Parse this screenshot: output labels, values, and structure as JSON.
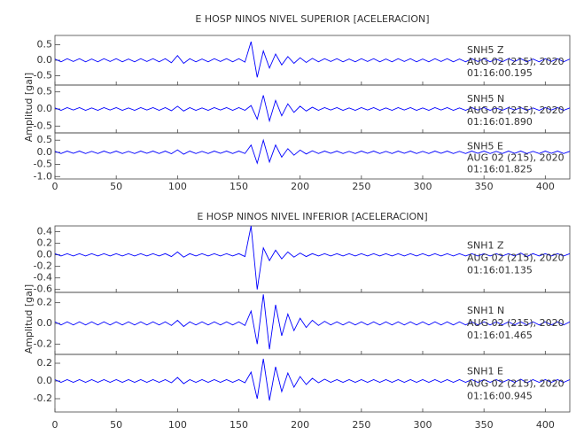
{
  "chart_data": [
    {
      "type": "line",
      "title": "E HOSP NINOS NIVEL SUPERIOR [ACELERACION]",
      "y_label": "Amplitud [gal]",
      "color": "#0000ff",
      "xlim": [
        0,
        420
      ],
      "xticks": [
        0,
        50,
        100,
        150,
        200,
        250,
        300,
        350,
        400
      ],
      "x": [
        0,
        5,
        10,
        15,
        20,
        25,
        30,
        35,
        40,
        45,
        50,
        55,
        60,
        65,
        70,
        75,
        80,
        85,
        90,
        95,
        100,
        105,
        110,
        115,
        120,
        125,
        130,
        135,
        140,
        145,
        150,
        155,
        160,
        165,
        170,
        175,
        180,
        185,
        190,
        195,
        200,
        205,
        210,
        215,
        220,
        225,
        230,
        235,
        240,
        245,
        250,
        255,
        260,
        265,
        270,
        275,
        280,
        285,
        290,
        295,
        300,
        305,
        310,
        315,
        320,
        325,
        330,
        335,
        340,
        345,
        350,
        355,
        360,
        365,
        370,
        375,
        380,
        385,
        390,
        395,
        400,
        405,
        410,
        415,
        420
      ],
      "panels": [
        {
          "station": "SNH5    Z",
          "date": "AUG 02 (215), 2020",
          "time": "01:16:00.195",
          "ylim": [
            -0.8,
            0.8
          ],
          "yticks": [
            0.5,
            {
              "value": 0,
              "label": "0.0"
            },
            -0.5
          ],
          "values": [
            0.04,
            -0.05,
            0.05,
            -0.04,
            0.05,
            -0.05,
            0.04,
            -0.05,
            0.05,
            -0.04,
            0.05,
            -0.05,
            0.04,
            -0.05,
            0.05,
            -0.04,
            0.05,
            -0.05,
            0.05,
            -0.08,
            0.15,
            -0.1,
            0.05,
            -0.05,
            0.04,
            -0.05,
            0.05,
            -0.04,
            0.05,
            -0.05,
            0.05,
            -0.06,
            0.6,
            -0.55,
            0.3,
            -0.25,
            0.2,
            -0.15,
            0.12,
            -0.1,
            0.08,
            -0.07,
            0.06,
            -0.05,
            0.05,
            -0.04,
            0.05,
            -0.05,
            0.04,
            -0.05,
            0.05,
            -0.04,
            0.05,
            -0.05,
            0.04,
            -0.05,
            0.05,
            -0.04,
            0.05,
            -0.05,
            0.04,
            -0.05,
            0.05,
            -0.04,
            0.05,
            -0.05,
            0.04,
            -0.05,
            0.05,
            -0.04,
            0.05,
            -0.05,
            0.04,
            -0.05,
            0.05,
            -0.04,
            0.05,
            -0.05,
            0.04,
            -0.05,
            0.05,
            -0.04,
            0.05,
            -0.05,
            0.04
          ]
        },
        {
          "station": "SNH5    N",
          "date": "AUG 02 (215), 2020",
          "time": "01:16:01.890",
          "ylim": [
            -0.7,
            0.7
          ],
          "yticks": [
            0.5,
            {
              "value": 0,
              "label": "0.0"
            },
            -0.5
          ],
          "values": [
            0.03,
            -0.04,
            0.04,
            -0.03,
            0.04,
            -0.04,
            0.03,
            -0.04,
            0.04,
            -0.03,
            0.04,
            -0.04,
            0.03,
            -0.04,
            0.04,
            -0.03,
            0.04,
            -0.04,
            0.04,
            -0.05,
            0.08,
            -0.06,
            0.04,
            -0.04,
            0.03,
            -0.04,
            0.04,
            -0.03,
            0.04,
            -0.04,
            0.04,
            -0.04,
            0.1,
            -0.3,
            0.4,
            -0.35,
            0.25,
            -0.2,
            0.15,
            -0.1,
            0.08,
            -0.06,
            0.05,
            -0.04,
            0.04,
            -0.03,
            0.04,
            -0.04,
            0.03,
            -0.04,
            0.04,
            -0.03,
            0.04,
            -0.04,
            0.03,
            -0.04,
            0.04,
            -0.03,
            0.04,
            -0.04,
            0.03,
            -0.04,
            0.04,
            -0.03,
            0.04,
            -0.04,
            0.03,
            -0.04,
            0.04,
            -0.03,
            0.04,
            -0.04,
            0.03,
            -0.04,
            0.04,
            -0.03,
            0.04,
            -0.04,
            0.03,
            -0.04,
            0.04,
            -0.03,
            0.04,
            -0.04,
            0.03
          ]
        },
        {
          "station": "SNH5    E",
          "date": "AUG 02 (215), 2020",
          "time": "01:16:01.825",
          "ylim": [
            -1.1,
            0.8
          ],
          "yticks": [
            0.5,
            {
              "value": 0,
              "label": "0.0"
            },
            -0.5,
            {
              "value": -1,
              "label": "-1.0"
            }
          ],
          "values": [
            0.04,
            -0.05,
            0.05,
            -0.04,
            0.05,
            -0.05,
            0.04,
            -0.05,
            0.05,
            -0.04,
            0.05,
            -0.05,
            0.04,
            -0.05,
            0.05,
            -0.04,
            0.05,
            -0.05,
            0.05,
            -0.06,
            0.1,
            -0.08,
            0.05,
            -0.05,
            0.04,
            -0.05,
            0.05,
            -0.04,
            0.05,
            -0.05,
            0.05,
            -0.05,
            0.3,
            -0.45,
            0.5,
            -0.4,
            0.3,
            -0.2,
            0.15,
            -0.12,
            0.09,
            -0.07,
            0.06,
            -0.05,
            0.05,
            -0.04,
            0.05,
            -0.05,
            0.04,
            -0.05,
            0.05,
            -0.04,
            0.05,
            -0.05,
            0.04,
            -0.05,
            0.05,
            -0.04,
            0.05,
            -0.05,
            0.04,
            -0.05,
            0.05,
            -0.04,
            0.05,
            -0.05,
            0.04,
            -0.05,
            0.05,
            -0.04,
            0.05,
            -0.05,
            0.04,
            -0.05,
            0.05,
            -0.04,
            0.05,
            -0.05,
            0.04,
            -0.05,
            0.05,
            -0.04,
            0.05,
            -0.05,
            0.04
          ]
        }
      ]
    },
    {
      "type": "line",
      "title": "E HOSP NINOS NIVEL INFERIOR [ACELERACION]",
      "y_label": "Amplitud [gal]",
      "color": "#0000ff",
      "xlim": [
        0,
        420
      ],
      "xticks": [
        0,
        50,
        100,
        150,
        200,
        250,
        300,
        350,
        400
      ],
      "x": [
        0,
        5,
        10,
        15,
        20,
        25,
        30,
        35,
        40,
        45,
        50,
        55,
        60,
        65,
        70,
        75,
        80,
        85,
        90,
        95,
        100,
        105,
        110,
        115,
        120,
        125,
        130,
        135,
        140,
        145,
        150,
        155,
        160,
        165,
        170,
        175,
        180,
        185,
        190,
        195,
        200,
        205,
        210,
        215,
        220,
        225,
        230,
        235,
        240,
        245,
        250,
        255,
        260,
        265,
        270,
        275,
        280,
        285,
        290,
        295,
        300,
        305,
        310,
        315,
        320,
        325,
        330,
        335,
        340,
        345,
        350,
        355,
        360,
        365,
        370,
        375,
        380,
        385,
        390,
        395,
        400,
        405,
        410,
        415,
        420
      ],
      "panels": [
        {
          "station": "SNH1    Z",
          "date": "AUG 02 (215), 2020",
          "time": "01:16:01.135",
          "ylim": [
            -0.65,
            0.5
          ],
          "yticks": [
            0.4,
            0.2,
            {
              "value": 0,
              "label": "0.0"
            },
            -0.2,
            -0.4,
            -0.6
          ],
          "values": [
            0.02,
            -0.02,
            0.02,
            -0.02,
            0.02,
            -0.02,
            0.02,
            -0.02,
            0.02,
            -0.02,
            0.02,
            -0.02,
            0.02,
            -0.02,
            0.02,
            -0.02,
            0.02,
            -0.02,
            0.02,
            -0.03,
            0.05,
            -0.04,
            0.02,
            -0.02,
            0.02,
            -0.02,
            0.02,
            -0.02,
            0.02,
            -0.02,
            0.02,
            -0.03,
            0.5,
            -0.6,
            0.12,
            -0.1,
            0.08,
            -0.07,
            0.05,
            -0.04,
            0.03,
            -0.03,
            0.02,
            -0.02,
            0.02,
            -0.02,
            0.02,
            -0.02,
            0.02,
            -0.02,
            0.02,
            -0.02,
            0.02,
            -0.02,
            0.02,
            -0.02,
            0.02,
            -0.02,
            0.02,
            -0.02,
            0.02,
            -0.02,
            0.02,
            -0.02,
            0.02,
            -0.02,
            0.02,
            -0.02,
            0.02,
            -0.02,
            0.02,
            -0.02,
            0.02,
            -0.02,
            0.02,
            -0.02,
            0.03,
            -0.03,
            0.02,
            -0.02,
            0.02,
            -0.02,
            0.02,
            -0.02,
            0.02
          ]
        },
        {
          "station": "SNH1    N",
          "date": "AUG 02 (215), 2020",
          "time": "01:16:01.465",
          "ylim": [
            -0.3,
            0.3
          ],
          "yticks": [
            0.2,
            {
              "value": 0,
              "label": "0.0"
            },
            -0.2
          ],
          "values": [
            0.015,
            -0.015,
            0.015,
            -0.015,
            0.015,
            -0.015,
            0.015,
            -0.015,
            0.015,
            -0.015,
            0.015,
            -0.015,
            0.015,
            -0.015,
            0.015,
            -0.015,
            0.015,
            -0.015,
            0.015,
            -0.02,
            0.03,
            -0.03,
            0.015,
            -0.015,
            0.015,
            -0.015,
            0.015,
            -0.015,
            0.015,
            -0.015,
            0.015,
            -0.02,
            0.12,
            -0.2,
            0.28,
            -0.25,
            0.18,
            -0.12,
            0.09,
            -0.07,
            0.05,
            -0.04,
            0.03,
            -0.02,
            0.02,
            -0.015,
            0.015,
            -0.015,
            0.015,
            -0.015,
            0.015,
            -0.015,
            0.015,
            -0.015,
            0.015,
            -0.015,
            0.015,
            -0.015,
            0.015,
            -0.015,
            0.015,
            -0.015,
            0.015,
            -0.015,
            0.015,
            -0.015,
            0.015,
            -0.015,
            0.015,
            -0.015,
            0.015,
            -0.015,
            0.015,
            -0.015,
            0.015,
            -0.015,
            0.015,
            -0.015,
            0.015,
            -0.015,
            0.015,
            -0.015,
            0.015,
            -0.015,
            0.015
          ]
        },
        {
          "station": "SNH1    E",
          "date": "AUG 02 (215), 2020",
          "time": "01:16:00.945",
          "ylim": [
            -0.35,
            0.3
          ],
          "yticks": [
            0.2,
            {
              "value": 0,
              "label": "0.0"
            },
            -0.2
          ],
          "values": [
            0.015,
            -0.015,
            0.015,
            -0.015,
            0.015,
            -0.015,
            0.015,
            -0.015,
            0.015,
            -0.015,
            0.015,
            -0.015,
            0.015,
            -0.015,
            0.015,
            -0.015,
            0.015,
            -0.015,
            0.015,
            -0.02,
            0.04,
            -0.03,
            0.015,
            -0.015,
            0.015,
            -0.015,
            0.015,
            -0.015,
            0.015,
            -0.015,
            0.015,
            -0.02,
            0.1,
            -0.2,
            0.25,
            -0.22,
            0.16,
            -0.12,
            0.09,
            -0.07,
            0.05,
            -0.04,
            0.03,
            -0.02,
            0.02,
            -0.015,
            0.015,
            -0.015,
            0.015,
            -0.015,
            0.015,
            -0.015,
            0.015,
            -0.015,
            0.015,
            -0.015,
            0.015,
            -0.015,
            0.015,
            -0.015,
            0.015,
            -0.015,
            0.015,
            -0.015,
            0.015,
            -0.015,
            0.015,
            -0.015,
            0.015,
            -0.015,
            0.015,
            -0.015,
            0.015,
            -0.015,
            0.015,
            -0.015,
            0.02,
            -0.02,
            0.015,
            -0.015,
            0.015,
            -0.015,
            0.015,
            -0.015,
            0.015
          ]
        }
      ]
    }
  ]
}
